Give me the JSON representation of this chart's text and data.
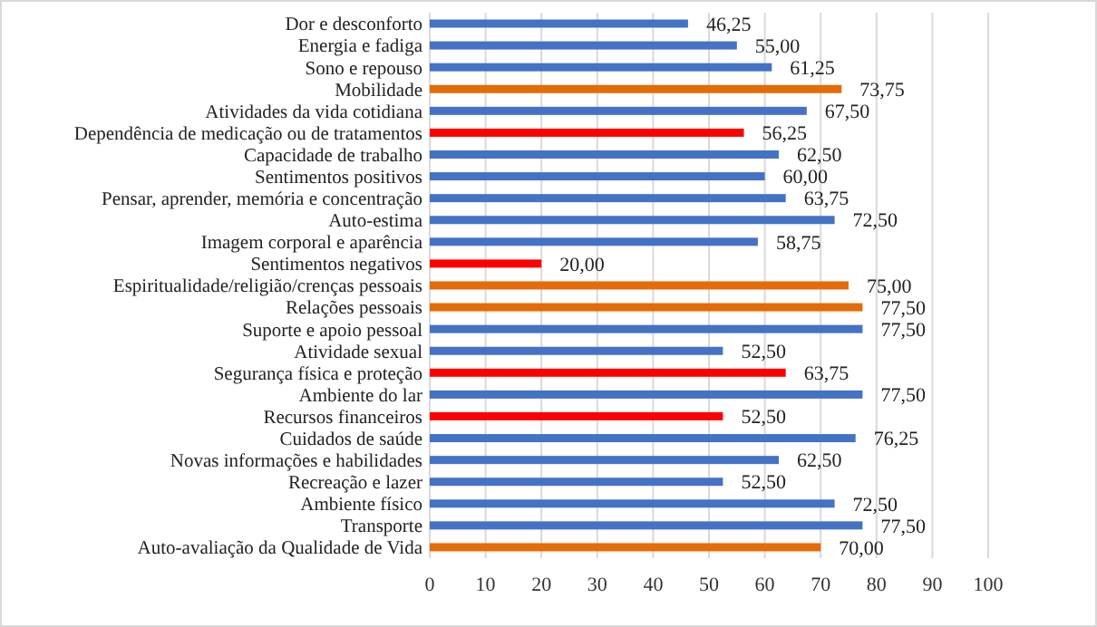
{
  "chart_data": {
    "type": "bar",
    "orientation": "horizontal",
    "categories": [
      "Dor e desconforto",
      "Energia e fadiga",
      "Sono e repouso",
      "Mobilidade",
      "Atividades da vida cotidiana",
      "Dependência de medicação ou de tratamentos",
      "Capacidade de trabalho",
      "Sentimentos positivos",
      "Pensar, aprender, memória e concentração",
      "Auto-estima",
      "Imagem corporal e aparência",
      "Sentimentos negativos",
      "Espiritualidade/religião/crenças pessoais",
      "Relações pessoais",
      "Suporte e apoio pessoal",
      "Atividade sexual",
      "Segurança física e proteção",
      "Ambiente do lar",
      "Recursos financeiros",
      "Cuidados de saúde",
      "Novas informações e habilidades",
      "Recreação e lazer",
      "Ambiente físico",
      "Transporte",
      "Auto-avaliação da Qualidade de Vida"
    ],
    "values": [
      46.25,
      55,
      61.25,
      73.75,
      67.5,
      56.25,
      62.5,
      60,
      63.75,
      72.5,
      58.75,
      20,
      75,
      77.5,
      77.5,
      52.5,
      63.75,
      77.5,
      52.5,
      76.25,
      62.5,
      52.5,
      72.5,
      77.5,
      70
    ],
    "value_labels": [
      "46,25",
      "55,00",
      "61,25",
      "73,75",
      "67,50",
      "56,25",
      "62,50",
      "60,00",
      "63,75",
      "72,50",
      "58,75",
      "20,00",
      "75,00",
      "77,50",
      "77,50",
      "52,50",
      "63,75",
      "77,50",
      "52,50",
      "76,25",
      "62,50",
      "52,50",
      "72,50",
      "77,50",
      "70,00"
    ],
    "colors": [
      "#4472c4",
      "#4472c4",
      "#4472c4",
      "#e36c09",
      "#4472c4",
      "#ff0000",
      "#4472c4",
      "#4472c4",
      "#4472c4",
      "#4472c4",
      "#4472c4",
      "#ff0000",
      "#e36c09",
      "#e36c09",
      "#4472c4",
      "#4472c4",
      "#ff0000",
      "#4472c4",
      "#ff0000",
      "#4472c4",
      "#4472c4",
      "#4472c4",
      "#4472c4",
      "#4472c4",
      "#e36c09"
    ],
    "xlim": [
      0,
      100
    ],
    "xticks": [
      0,
      10,
      20,
      30,
      40,
      50,
      60,
      70,
      80,
      90,
      100
    ],
    "grid": "x"
  }
}
